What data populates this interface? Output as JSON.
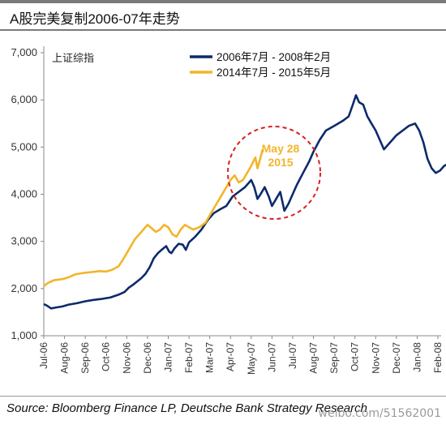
{
  "title": "A股完美复制2006-07年走势",
  "source": "Source: Bloomberg Finance LP, Deutsche Bank Strategy Research",
  "watermark": "weibo.com/51562001",
  "colors": {
    "navy": "#0d2a6b",
    "gold": "#f2b52a",
    "circle": "#d62020",
    "annotation": "#f2b52a"
  },
  "chart_data": {
    "type": "line",
    "ylabel": "上证综指",
    "ylim": [
      1000,
      7000
    ],
    "yticks": [
      1000,
      2000,
      3000,
      4000,
      5000,
      6000,
      7000
    ],
    "ytick_labels": [
      "1,000",
      "2,000",
      "3,000",
      "4,000",
      "5,000",
      "6,000",
      "7,000"
    ],
    "categories": [
      "Jul-06",
      "Aug-06",
      "Sep-06",
      "Oct-06",
      "Nov-06",
      "Dec-06",
      "Jan-07",
      "Feb-07",
      "Mar-07",
      "Apr-07",
      "May-07",
      "Jun-07",
      "Jul-07",
      "Aug-07",
      "Sep-07",
      "Oct-07",
      "Nov-07",
      "Dec-07",
      "Jan-08",
      "Feb-08"
    ],
    "legend_position": "top",
    "annotation": {
      "text_line1": "May 28",
      "text_line2": "2015"
    },
    "series": [
      {
        "name": "2006年7月 - 2008年2月",
        "color": "#0d2a6b",
        "points": [
          [
            0,
            1670
          ],
          [
            0.15,
            1640
          ],
          [
            0.35,
            1580
          ],
          [
            0.6,
            1600
          ],
          [
            0.9,
            1620
          ],
          [
            1.2,
            1660
          ],
          [
            1.6,
            1690
          ],
          [
            2.0,
            1730
          ],
          [
            2.4,
            1760
          ],
          [
            2.8,
            1780
          ],
          [
            3.2,
            1810
          ],
          [
            3.6,
            1870
          ],
          [
            3.9,
            1930
          ],
          [
            4.1,
            2020
          ],
          [
            4.3,
            2080
          ],
          [
            4.5,
            2150
          ],
          [
            4.7,
            2220
          ],
          [
            4.9,
            2310
          ],
          [
            5.1,
            2450
          ],
          [
            5.3,
            2640
          ],
          [
            5.5,
            2750
          ],
          [
            5.7,
            2830
          ],
          [
            5.9,
            2900
          ],
          [
            6.05,
            2780
          ],
          [
            6.15,
            2750
          ],
          [
            6.3,
            2850
          ],
          [
            6.5,
            2950
          ],
          [
            6.7,
            2930
          ],
          [
            6.85,
            2820
          ],
          [
            7.0,
            2980
          ],
          [
            7.3,
            3100
          ],
          [
            7.6,
            3250
          ],
          [
            7.9,
            3450
          ],
          [
            8.2,
            3600
          ],
          [
            8.5,
            3680
          ],
          [
            8.8,
            3750
          ],
          [
            9.1,
            3950
          ],
          [
            9.4,
            4050
          ],
          [
            9.7,
            4150
          ],
          [
            10.0,
            4300
          ],
          [
            10.15,
            4150
          ],
          [
            10.3,
            3900
          ],
          [
            10.45,
            4000
          ],
          [
            10.65,
            4150
          ],
          [
            10.85,
            3950
          ],
          [
            11.0,
            3750
          ],
          [
            11.2,
            3900
          ],
          [
            11.4,
            4050
          ],
          [
            11.6,
            3650
          ],
          [
            11.8,
            3800
          ],
          [
            12.0,
            4000
          ],
          [
            12.2,
            4200
          ],
          [
            12.5,
            4450
          ],
          [
            12.8,
            4700
          ],
          [
            13.0,
            4900
          ],
          [
            13.3,
            5150
          ],
          [
            13.6,
            5350
          ],
          [
            14.0,
            5450
          ],
          [
            14.4,
            5550
          ],
          [
            14.7,
            5650
          ],
          [
            14.9,
            5900
          ],
          [
            15.05,
            6100
          ],
          [
            15.2,
            5950
          ],
          [
            15.4,
            5900
          ],
          [
            15.6,
            5650
          ],
          [
            15.8,
            5500
          ],
          [
            16.0,
            5350
          ],
          [
            16.2,
            5150
          ],
          [
            16.4,
            4950
          ],
          [
            16.6,
            5050
          ],
          [
            16.8,
            5150
          ],
          [
            17.0,
            5250
          ],
          [
            17.3,
            5350
          ],
          [
            17.6,
            5450
          ],
          [
            17.9,
            5500
          ],
          [
            18.1,
            5350
          ],
          [
            18.3,
            5100
          ],
          [
            18.5,
            4750
          ],
          [
            18.7,
            4550
          ],
          [
            18.9,
            4450
          ],
          [
            19.1,
            4500
          ],
          [
            19.3,
            4600
          ],
          [
            19.5,
            4650
          ],
          [
            19.65,
            4350
          ],
          [
            19.75,
            4250
          ],
          [
            19.9,
            4350
          ]
        ]
      },
      {
        "name": "2014年7月 - 2015年5月",
        "color": "#f2b52a",
        "points": [
          [
            0,
            2050
          ],
          [
            0.2,
            2120
          ],
          [
            0.5,
            2180
          ],
          [
            0.9,
            2200
          ],
          [
            1.2,
            2240
          ],
          [
            1.5,
            2300
          ],
          [
            1.9,
            2330
          ],
          [
            2.3,
            2350
          ],
          [
            2.7,
            2370
          ],
          [
            3.0,
            2360
          ],
          [
            3.3,
            2400
          ],
          [
            3.6,
            2470
          ],
          [
            3.8,
            2600
          ],
          [
            4.0,
            2750
          ],
          [
            4.2,
            2900
          ],
          [
            4.4,
            3050
          ],
          [
            4.6,
            3150
          ],
          [
            4.8,
            3250
          ],
          [
            5.0,
            3350
          ],
          [
            5.2,
            3280
          ],
          [
            5.4,
            3200
          ],
          [
            5.6,
            3250
          ],
          [
            5.8,
            3350
          ],
          [
            6.0,
            3300
          ],
          [
            6.2,
            3150
          ],
          [
            6.4,
            3100
          ],
          [
            6.6,
            3250
          ],
          [
            6.8,
            3350
          ],
          [
            7.0,
            3300
          ],
          [
            7.2,
            3250
          ],
          [
            7.5,
            3300
          ],
          [
            7.8,
            3400
          ],
          [
            8.0,
            3550
          ],
          [
            8.2,
            3700
          ],
          [
            8.4,
            3850
          ],
          [
            8.6,
            4000
          ],
          [
            8.8,
            4150
          ],
          [
            9.0,
            4300
          ],
          [
            9.2,
            4400
          ],
          [
            9.4,
            4250
          ],
          [
            9.6,
            4300
          ],
          [
            9.8,
            4450
          ],
          [
            10.0,
            4600
          ],
          [
            10.2,
            4780
          ],
          [
            10.3,
            4550
          ],
          [
            10.4,
            4700
          ],
          [
            10.55,
            4950
          ]
        ]
      }
    ]
  }
}
